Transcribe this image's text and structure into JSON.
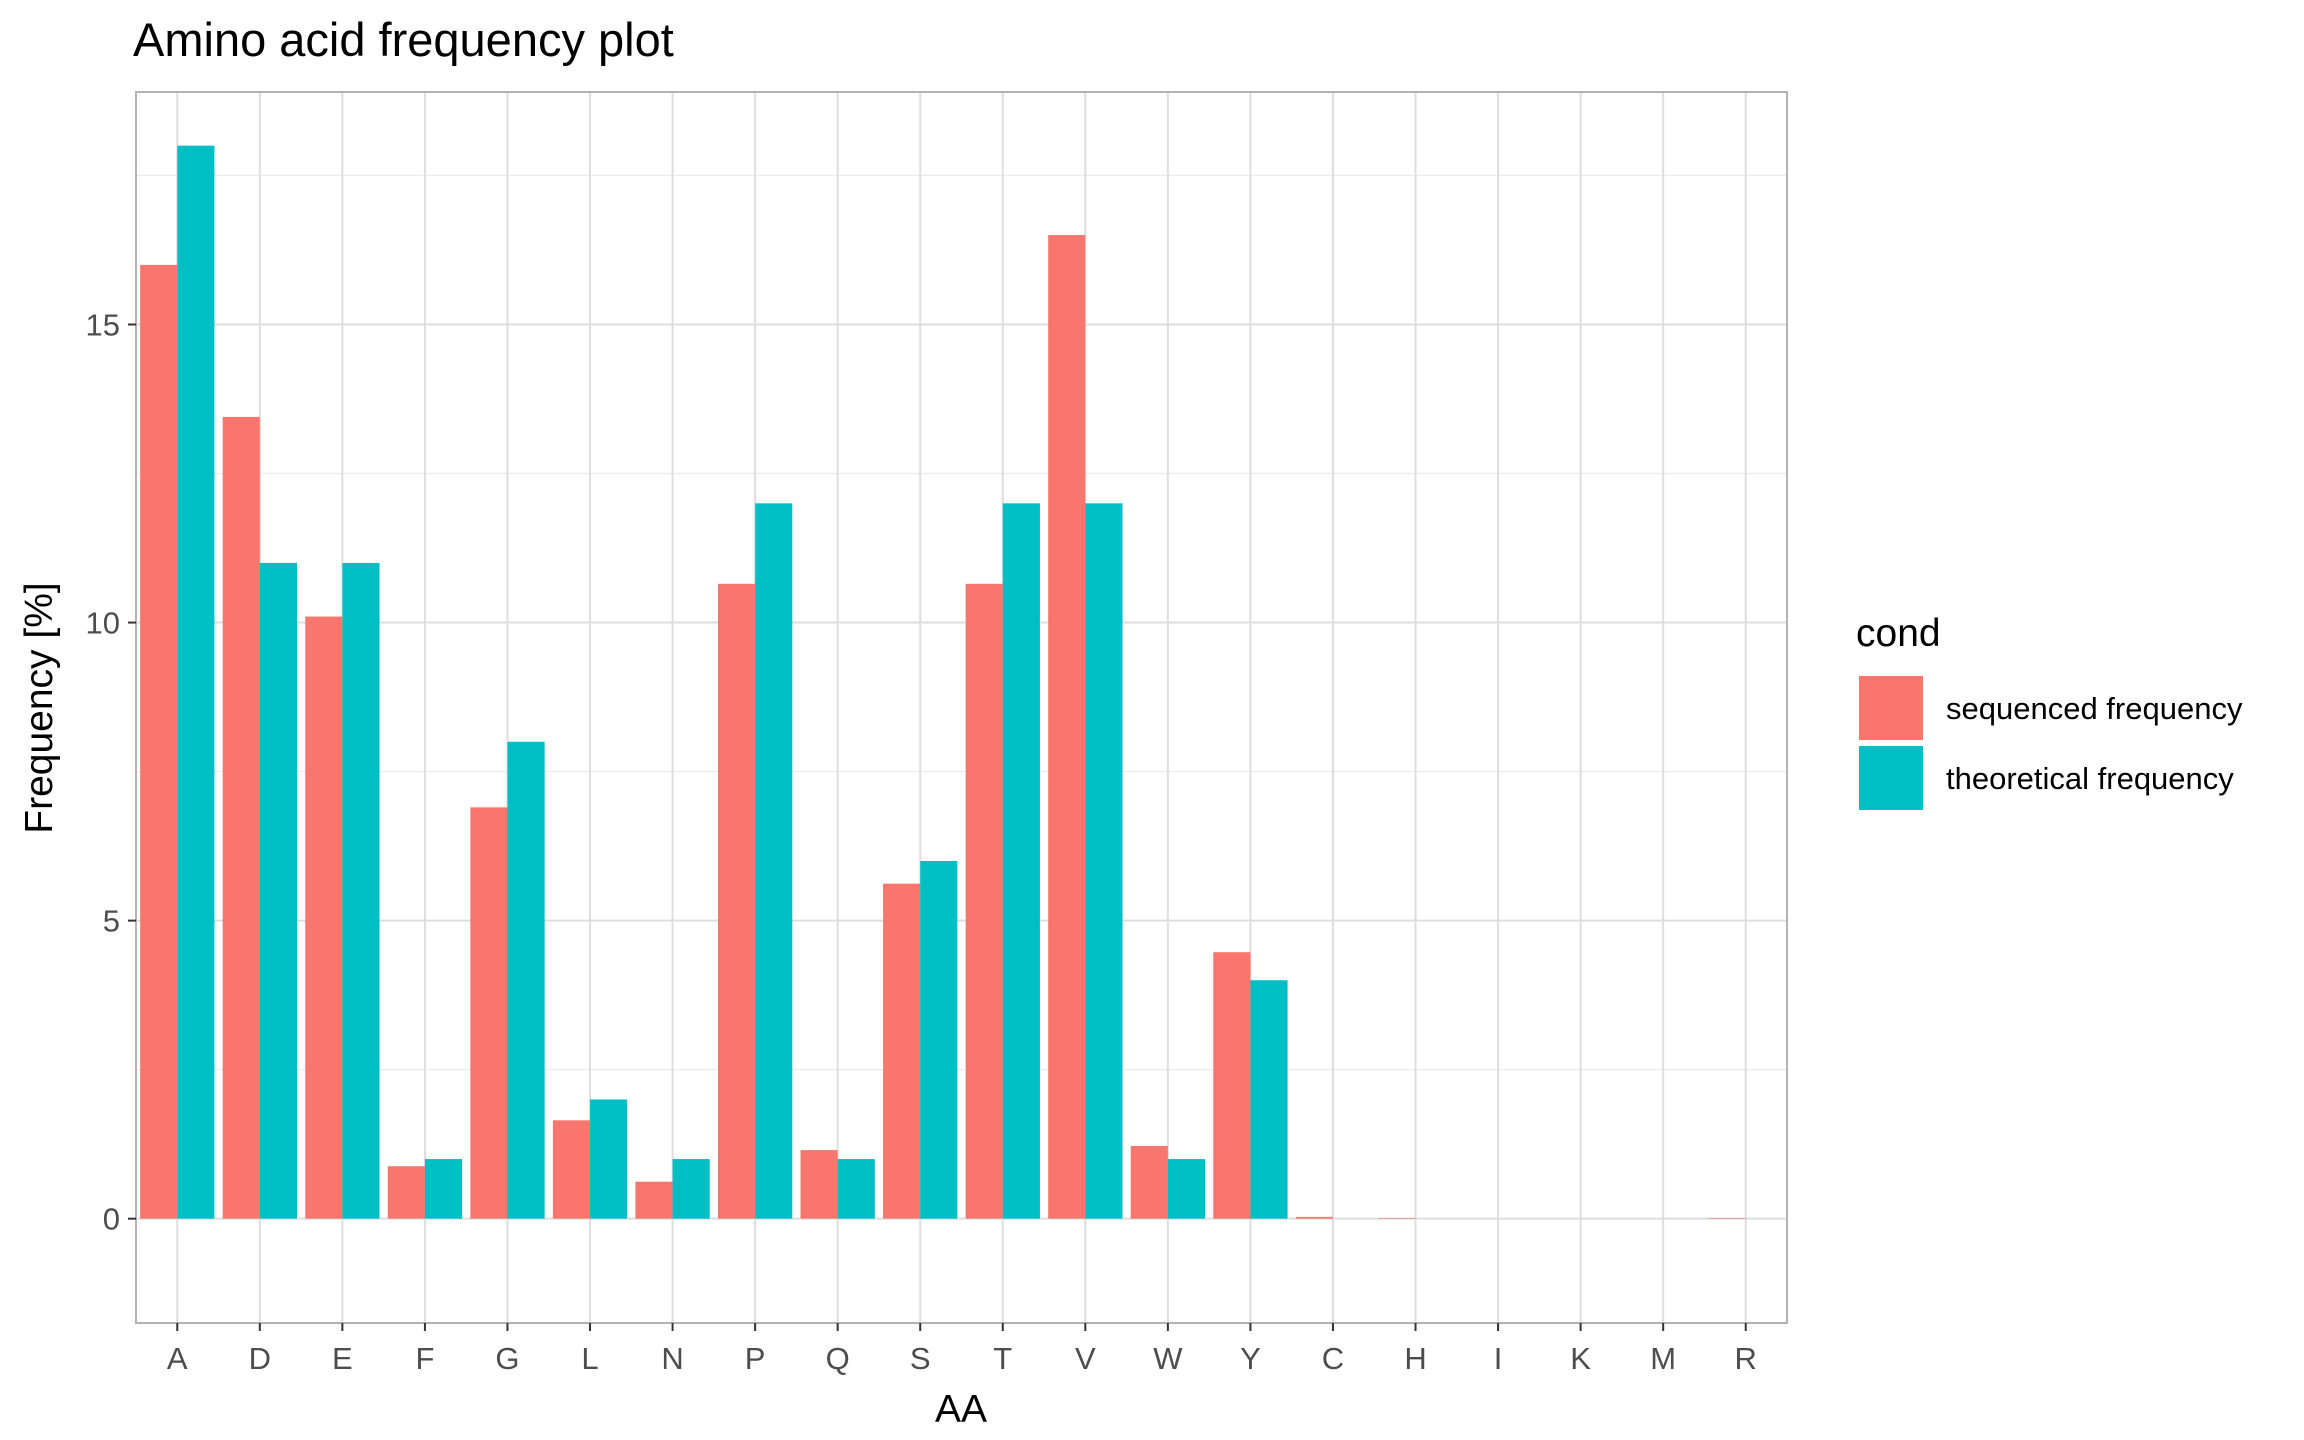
{
  "chart_data": {
    "type": "bar",
    "title": "Amino acid frequency plot",
    "xlabel": "AA",
    "ylabel": "Frequency [%]",
    "ylim": [
      -1.75,
      18.9
    ],
    "yticks": [
      0,
      5,
      10,
      15
    ],
    "ytick_labels": [
      "0",
      "5",
      "10",
      "15"
    ],
    "grid": true,
    "categories": [
      "A",
      "D",
      "E",
      "F",
      "G",
      "L",
      "N",
      "P",
      "Q",
      "S",
      "T",
      "V",
      "W",
      "Y",
      "C",
      "H",
      "I",
      "K",
      "M",
      "R"
    ],
    "legend": {
      "title": "cond",
      "position": "right"
    },
    "series": [
      {
        "name": "sequenced frequency",
        "color": "#F8766D",
        "values": [
          16.0,
          13.45,
          10.1,
          0.88,
          6.9,
          1.65,
          0.62,
          10.65,
          1.15,
          5.62,
          10.65,
          16.5,
          1.22,
          4.47,
          0.03,
          0.01,
          0.0,
          0.0,
          0.0,
          0.01
        ]
      },
      {
        "name": "theoretical frequency",
        "color": "#00BFC4",
        "values": [
          18.0,
          11.0,
          11.0,
          1.0,
          8.0,
          2.0,
          1.0,
          12.0,
          1.0,
          6.0,
          12.0,
          12.0,
          1.0,
          4.0,
          0.0,
          0.0,
          0.0,
          0.0,
          0.0,
          0.0
        ]
      }
    ]
  }
}
